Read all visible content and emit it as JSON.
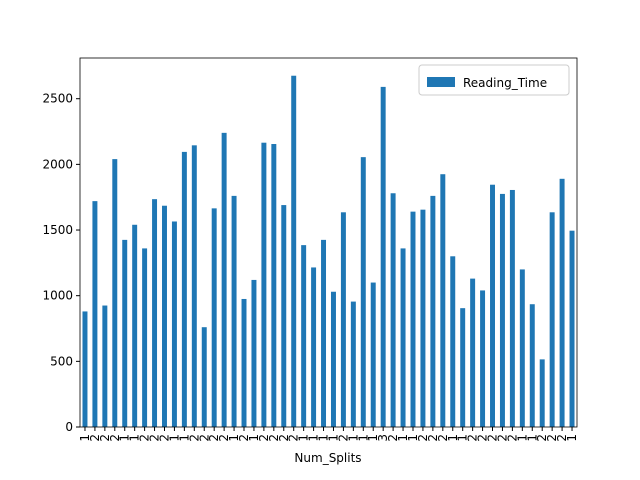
{
  "chart_data": {
    "type": "bar",
    "xlabel": "Num_Splits",
    "legend_loc": "upper right",
    "color": "#1f77b4",
    "series": [
      {
        "name": "Reading_Time",
        "color": "#1f77b4",
        "values": [
          880,
          1720,
          925,
          2040,
          1425,
          1540,
          1360,
          1735,
          1685,
          1565,
          2095,
          2145,
          760,
          1665,
          2240,
          1760,
          975,
          1120,
          2165,
          2155,
          1690,
          2675,
          1385,
          1215,
          1425,
          1030,
          1635,
          955,
          2055,
          1100,
          2590,
          1780,
          1360,
          1640,
          1655,
          1760,
          1925,
          1300,
          905,
          1130,
          1040,
          1845,
          1775,
          1805,
          1200,
          935,
          515,
          1635,
          1890,
          1495
        ]
      }
    ],
    "categories": [
      "1",
      "2",
      "2",
      "2",
      "1",
      "1",
      "2",
      "2",
      "2",
      "1",
      "1",
      "2",
      "2",
      "2",
      "2",
      "1",
      "2",
      "1",
      "2",
      "2",
      "2",
      "2",
      "1",
      "1",
      "1",
      "1",
      "2",
      "1",
      "1",
      "1",
      "3",
      "2",
      "1",
      "1",
      "2",
      "2",
      "2",
      "1",
      "1",
      "2",
      "2",
      "2",
      "2",
      "2",
      "1",
      "1",
      "2",
      "2",
      "2",
      "1"
    ],
    "ylim": [
      0,
      2810
    ],
    "yticks": [
      0,
      500,
      1000,
      1500,
      2000,
      2500
    ]
  }
}
